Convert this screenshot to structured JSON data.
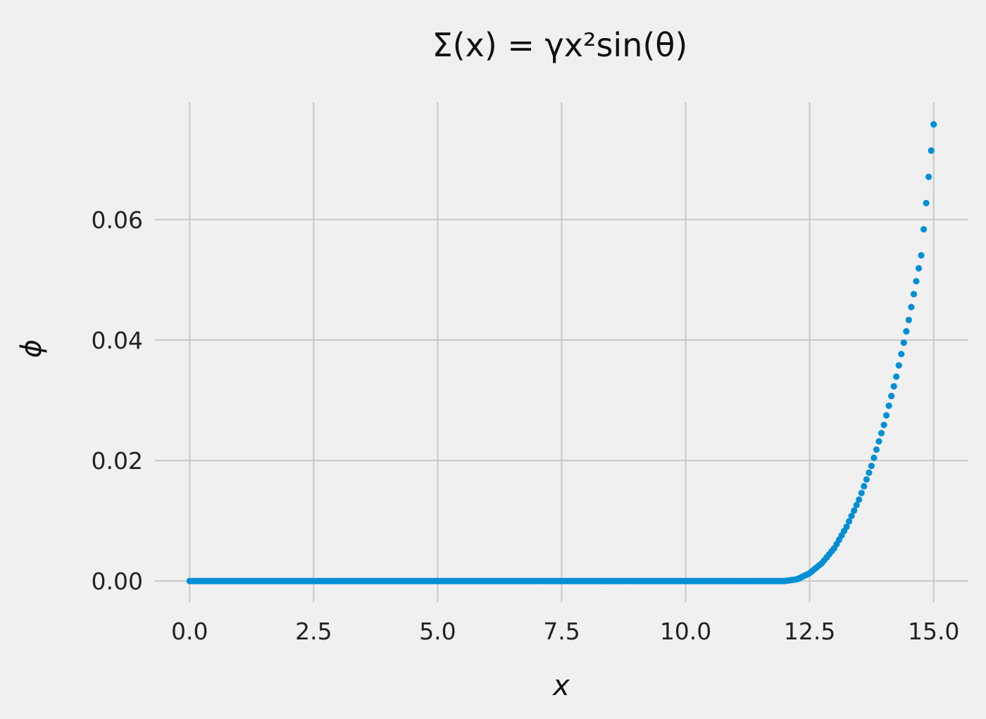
{
  "chart_data": {
    "type": "scatter",
    "title": "Σ(x) = γx²sin(θ)",
    "xlabel": "x",
    "ylabel": "ϕ",
    "xlim": [
      -0.7,
      15.7
    ],
    "ylim": [
      -0.0035,
      0.0795
    ],
    "xticks": [
      0.0,
      2.5,
      5.0,
      7.5,
      10.0,
      12.5,
      15.0
    ],
    "xtick_labels": [
      "0.0",
      "2.5",
      "5.0",
      "7.5",
      "10.0",
      "12.5",
      "15.0"
    ],
    "yticks": [
      0.0,
      0.02,
      0.04,
      0.06
    ],
    "ytick_labels": [
      "0.00",
      "0.02",
      "0.04",
      "0.06"
    ],
    "grid": true,
    "colors": {
      "background": "#f0f0f0",
      "grid": "#cbcbcb",
      "marker": "#008fd5"
    },
    "series": [
      {
        "x_start": 0.0,
        "x_end": 15.0,
        "point_count": 300,
        "x": [
          0.0,
          12.0,
          12.25,
          12.5,
          12.75,
          13.0,
          13.25,
          13.5,
          13.75,
          14.0,
          14.25,
          14.5,
          14.75,
          15.0
        ],
        "y": [
          0.0,
          0.0,
          0.0003,
          0.0013,
          0.003,
          0.0055,
          0.0091,
          0.0136,
          0.0192,
          0.026,
          0.034,
          0.0434,
          0.0541,
          0.0758
        ]
      }
    ]
  }
}
